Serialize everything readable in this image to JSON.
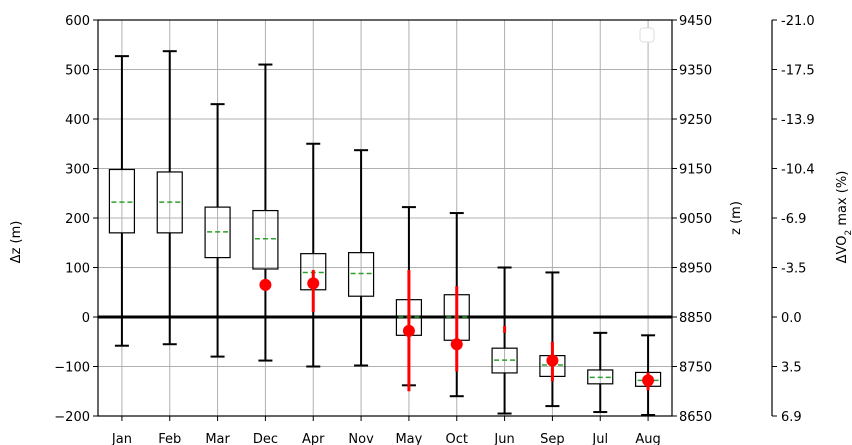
{
  "chart_data": {
    "type": "box",
    "categories": [
      "Jan",
      "Feb",
      "Mar",
      "Dec",
      "Apr",
      "Nov",
      "May",
      "Oct",
      "Jun",
      "Sep",
      "Jul",
      "Aug"
    ],
    "ylabel": "Δz (m)",
    "ylim": [
      -200,
      600
    ],
    "yticks": [
      -200,
      -100,
      0,
      100,
      200,
      300,
      400,
      500,
      600
    ],
    "ytick_labels": [
      "−200",
      "−100",
      "0",
      "100",
      "200",
      "300",
      "400",
      "500",
      "600"
    ],
    "y2label": "z (m)",
    "y2_ticks": [
      {
        "value": -200,
        "label": "8650"
      },
      {
        "value": -100,
        "label": "8750"
      },
      {
        "value": 0,
        "label": "8850"
      },
      {
        "value": 100,
        "label": "8950"
      },
      {
        "value": 200,
        "label": "9050"
      },
      {
        "value": 300,
        "label": "9150"
      },
      {
        "value": 400,
        "label": "9250"
      },
      {
        "value": 500,
        "label": "9350"
      },
      {
        "value": 600,
        "label": "9450"
      }
    ],
    "y3label_main": "ΔVO",
    "y3label_sub": "2",
    "y3label_rest": " max (%)",
    "y3_ticks": [
      {
        "value": -200,
        "label": "6.9"
      },
      {
        "value": -100,
        "label": "3.5"
      },
      {
        "value": 0,
        "label": "0.0"
      },
      {
        "value": 100,
        "label": "-3.5"
      },
      {
        "value": 200,
        "label": "-6.9"
      },
      {
        "value": 300,
        "label": "-10.4"
      },
      {
        "value": 400,
        "label": "-13.9"
      },
      {
        "value": 500,
        "label": "-17.5"
      },
      {
        "value": 600,
        "label": "-21.0"
      }
    ],
    "grid": true,
    "zero_line": 0,
    "boxes": [
      {
        "whislo": -58,
        "q1": 170,
        "med": 232,
        "q3": 298,
        "whishi": 527
      },
      {
        "whislo": -55,
        "q1": 170,
        "med": 232,
        "q3": 293,
        "whishi": 537
      },
      {
        "whislo": -80,
        "q1": 120,
        "med": 172,
        "q3": 222,
        "whishi": 430
      },
      {
        "whislo": -88,
        "q1": 97,
        "med": 158,
        "q3": 215,
        "whishi": 510
      },
      {
        "whislo": -100,
        "q1": 55,
        "med": 90,
        "q3": 128,
        "whishi": 350
      },
      {
        "whislo": -98,
        "q1": 42,
        "med": 88,
        "q3": 130,
        "whishi": 337
      },
      {
        "whislo": -138,
        "q1": -37,
        "med": 0,
        "q3": 35,
        "whishi": 222
      },
      {
        "whislo": -160,
        "q1": -47,
        "med": 0,
        "q3": 45,
        "whishi": 210
      },
      {
        "whislo": -195,
        "q1": -113,
        "med": -87,
        "q3": -63,
        "whishi": 100
      },
      {
        "whislo": -180,
        "q1": -120,
        "med": -97,
        "q3": -78,
        "whishi": 90
      },
      {
        "whislo": -192,
        "q1": -135,
        "med": -122,
        "q3": -107,
        "whishi": -32
      },
      {
        "whislo": -198,
        "q1": -140,
        "med": -128,
        "q3": -112,
        "whishi": -37
      }
    ],
    "red_points": [
      {
        "index": 3,
        "y": 65,
        "lo": 65,
        "hi": 65
      },
      {
        "index": 4,
        "y": 68,
        "lo": 10,
        "hi": 95
      },
      {
        "index": 6,
        "y": -28,
        "lo": -150,
        "hi": 95
      },
      {
        "index": 7,
        "y": -55,
        "lo": -110,
        "hi": 62
      },
      {
        "index": 8,
        "y": null,
        "lo": -32,
        "hi": -18
      },
      {
        "index": 9,
        "y": -88,
        "lo": -130,
        "hi": -50
      },
      {
        "index": 11,
        "y": -128,
        "lo": -148,
        "hi": -112
      }
    ],
    "colors": {
      "box": "#000000",
      "median": "#2ca02c",
      "red": "#ff0000",
      "grid": "#b0b0b0"
    }
  }
}
